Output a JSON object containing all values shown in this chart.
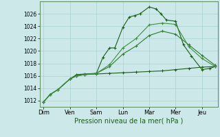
{
  "xlabel": "Pression niveau de la mer( hPa )",
  "x_labels": [
    "Dim",
    "Ven",
    "Sam",
    "Lun",
    "Mar",
    "Mer",
    "Jeu"
  ],
  "x_positions": [
    0,
    1,
    2,
    3,
    4,
    5,
    6
  ],
  "ylim": [
    1011.0,
    1028.0
  ],
  "yticks": [
    1012,
    1014,
    1016,
    1018,
    1020,
    1022,
    1024,
    1026
  ],
  "xlim": [
    -0.15,
    6.6
  ],
  "background_color": "#cce8e8",
  "grid_color": "#aad0d0",
  "line_color_dark": "#1a5c1a",
  "line_color_mid": "#2d7a2d",
  "line_color_light": "#3d8f3d",
  "series": [
    {
      "x": [
        0.0,
        0.25,
        0.55,
        1.0,
        1.25,
        1.55,
        2.0,
        2.25,
        2.5,
        2.7,
        3.0,
        3.25,
        3.45,
        3.65,
        4.0,
        4.25,
        4.45,
        4.65,
        5.0,
        5.3,
        5.6,
        6.0,
        6.3,
        6.5
      ],
      "y": [
        1011.8,
        1013.0,
        1013.8,
        1015.5,
        1016.2,
        1016.3,
        1016.4,
        1019.0,
        1020.5,
        1020.5,
        1023.8,
        1025.5,
        1025.7,
        1026.0,
        1027.1,
        1026.8,
        1026.0,
        1025.0,
        1024.8,
        1021.0,
        1019.2,
        1017.0,
        1017.2,
        1017.5
      ],
      "style": "dark"
    },
    {
      "x": [
        0.0,
        0.25,
        0.55,
        1.0,
        1.25,
        1.55,
        2.0,
        2.5,
        3.0,
        3.5,
        4.0,
        4.5,
        5.0,
        5.5,
        6.0,
        6.5
      ],
      "y": [
        1011.8,
        1013.0,
        1013.8,
        1015.5,
        1016.0,
        1016.2,
        1016.3,
        1016.4,
        1016.5,
        1016.6,
        1016.7,
        1016.8,
        1017.0,
        1017.2,
        1017.4,
        1017.5
      ],
      "style": "dark"
    },
    {
      "x": [
        0.0,
        0.25,
        0.55,
        1.0,
        1.25,
        1.55,
        2.0,
        2.5,
        3.0,
        3.5,
        4.0,
        4.5,
        5.0,
        5.5,
        6.0,
        6.5
      ],
      "y": [
        1011.8,
        1013.0,
        1013.8,
        1015.5,
        1016.0,
        1016.2,
        1016.4,
        1017.5,
        1019.5,
        1020.8,
        1022.5,
        1023.2,
        1022.7,
        1021.0,
        1019.3,
        1017.7
      ],
      "style": "mid"
    },
    {
      "x": [
        0.0,
        0.25,
        0.55,
        1.0,
        1.25,
        1.55,
        2.0,
        2.5,
        3.0,
        3.5,
        4.0,
        4.5,
        5.0,
        5.5,
        6.0,
        6.5
      ],
      "y": [
        1011.8,
        1013.0,
        1013.8,
        1015.5,
        1016.0,
        1016.2,
        1016.4,
        1017.8,
        1020.5,
        1022.0,
        1024.2,
        1024.5,
        1024.3,
        1020.7,
        1018.8,
        1017.5
      ],
      "style": "light"
    }
  ]
}
